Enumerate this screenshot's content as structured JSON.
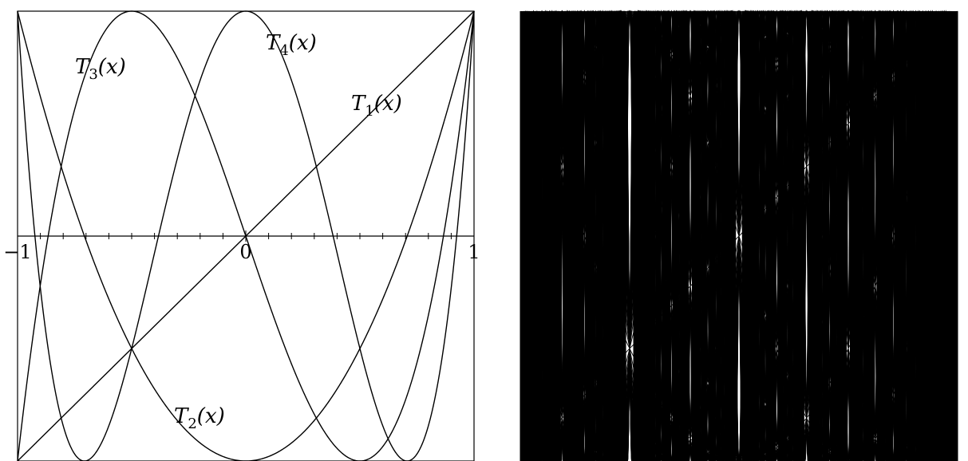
{
  "chart_data": [
    {
      "type": "line",
      "title": "",
      "xlabel": "",
      "ylabel": "",
      "xlim": [
        -1,
        1
      ],
      "ylim": [
        -1,
        1
      ],
      "x_tick_labels": [
        "−1",
        "0",
        "1"
      ],
      "x_tick_values": [
        -1,
        0,
        1
      ],
      "minor_ticks_per_unit": 10,
      "grid": false,
      "stroke_color": "#000000",
      "series": [
        {
          "name": "T",
          "index": "1",
          "arg": "(x)",
          "degree": 1
        },
        {
          "name": "T",
          "index": "2",
          "arg": "(x)",
          "degree": 2
        },
        {
          "name": "T",
          "index": "3",
          "arg": "(x)",
          "degree": 3
        },
        {
          "name": "T",
          "index": "4",
          "arg": "(x)",
          "degree": 4
        }
      ]
    },
    {
      "type": "line",
      "title": "",
      "xlim": [
        -1,
        1
      ],
      "ylim": [
        -1,
        1
      ],
      "grid": false,
      "stroke_color": "#000000",
      "degree_range": [
        1,
        100
      ]
    }
  ]
}
